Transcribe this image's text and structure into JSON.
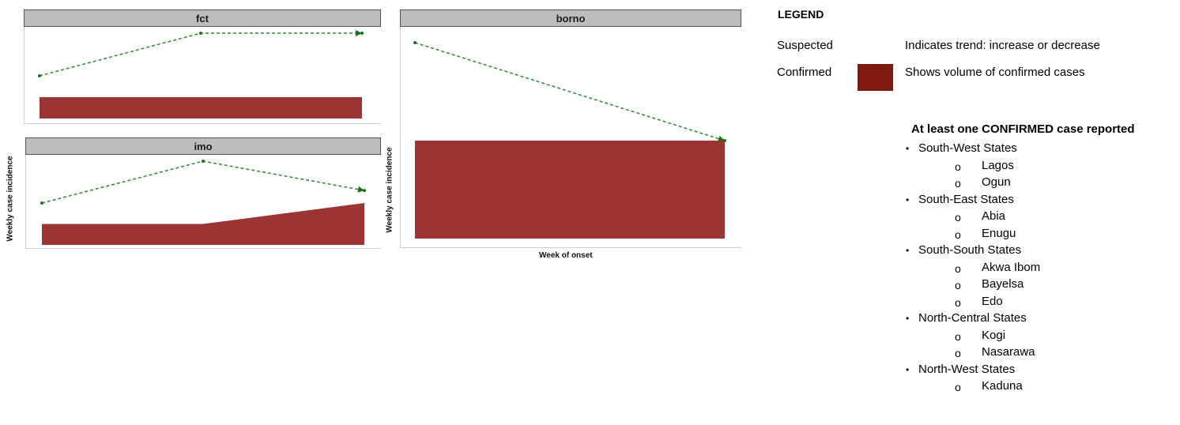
{
  "chart_data": [
    {
      "type": "area",
      "panel": "fct",
      "ylabel": "",
      "xlabel": "",
      "x": [
        1,
        2,
        3
      ],
      "series": [
        {
          "name": "Suspected",
          "values": [
            2,
            4,
            4
          ],
          "style": "dashed-line",
          "color": "#2a8a2a"
        },
        {
          "name": "Confirmed",
          "values": [
            1,
            1,
            1
          ],
          "style": "area",
          "color": "#9b3434"
        }
      ]
    },
    {
      "type": "area",
      "panel": "imo",
      "ylabel": "Weekly case incidence",
      "xlabel": "",
      "x": [
        1,
        2,
        3
      ],
      "series": [
        {
          "name": "Suspected",
          "values": [
            2,
            4,
            2.6
          ],
          "style": "dashed-line",
          "color": "#2a8a2a"
        },
        {
          "name": "Confirmed",
          "values": [
            1,
            1,
            2
          ],
          "style": "area",
          "color": "#9b3434"
        }
      ]
    },
    {
      "type": "area",
      "panel": "borno",
      "ylabel": "Weekly case incidence",
      "xlabel": "Week of onset",
      "x": [
        1,
        2
      ],
      "series": [
        {
          "name": "Suspected",
          "values": [
            4,
            2
          ],
          "style": "dashed-line",
          "color": "#2a8a2a"
        },
        {
          "name": "Confirmed",
          "values": [
            2,
            2
          ],
          "style": "area",
          "color": "#9b3434"
        }
      ]
    }
  ],
  "legend": {
    "title": "LEGEND",
    "suspected_label": "Suspected",
    "suspected_desc": "Indicates trend: increase or decrease",
    "confirmed_label": "Confirmed",
    "confirmed_desc": "Shows volume of confirmed cases",
    "confirmed_color": "#7f1a0e"
  },
  "confirmed_list": {
    "title": "At least one CONFIRMED case reported",
    "items": [
      {
        "kind": "region",
        "text": "South-West States"
      },
      {
        "kind": "state",
        "text": "Lagos"
      },
      {
        "kind": "state",
        "text": "Ogun"
      },
      {
        "kind": "region",
        "text": "South-East States"
      },
      {
        "kind": "state",
        "text": "Abia"
      },
      {
        "kind": "state",
        "text": "Enugu"
      },
      {
        "kind": "region",
        "text": "South-South States"
      },
      {
        "kind": "state",
        "text": "Akwa Ibom"
      },
      {
        "kind": "state",
        "text": "Bayelsa"
      },
      {
        "kind": "state",
        "text": "Edo"
      },
      {
        "kind": "region",
        "text": "North-Central States"
      },
      {
        "kind": "state",
        "text": "Kogi"
      },
      {
        "kind": "state",
        "text": "Nasarawa"
      },
      {
        "kind": "region",
        "text": "North-West States"
      },
      {
        "kind": "state",
        "text": "Kaduna"
      }
    ]
  }
}
